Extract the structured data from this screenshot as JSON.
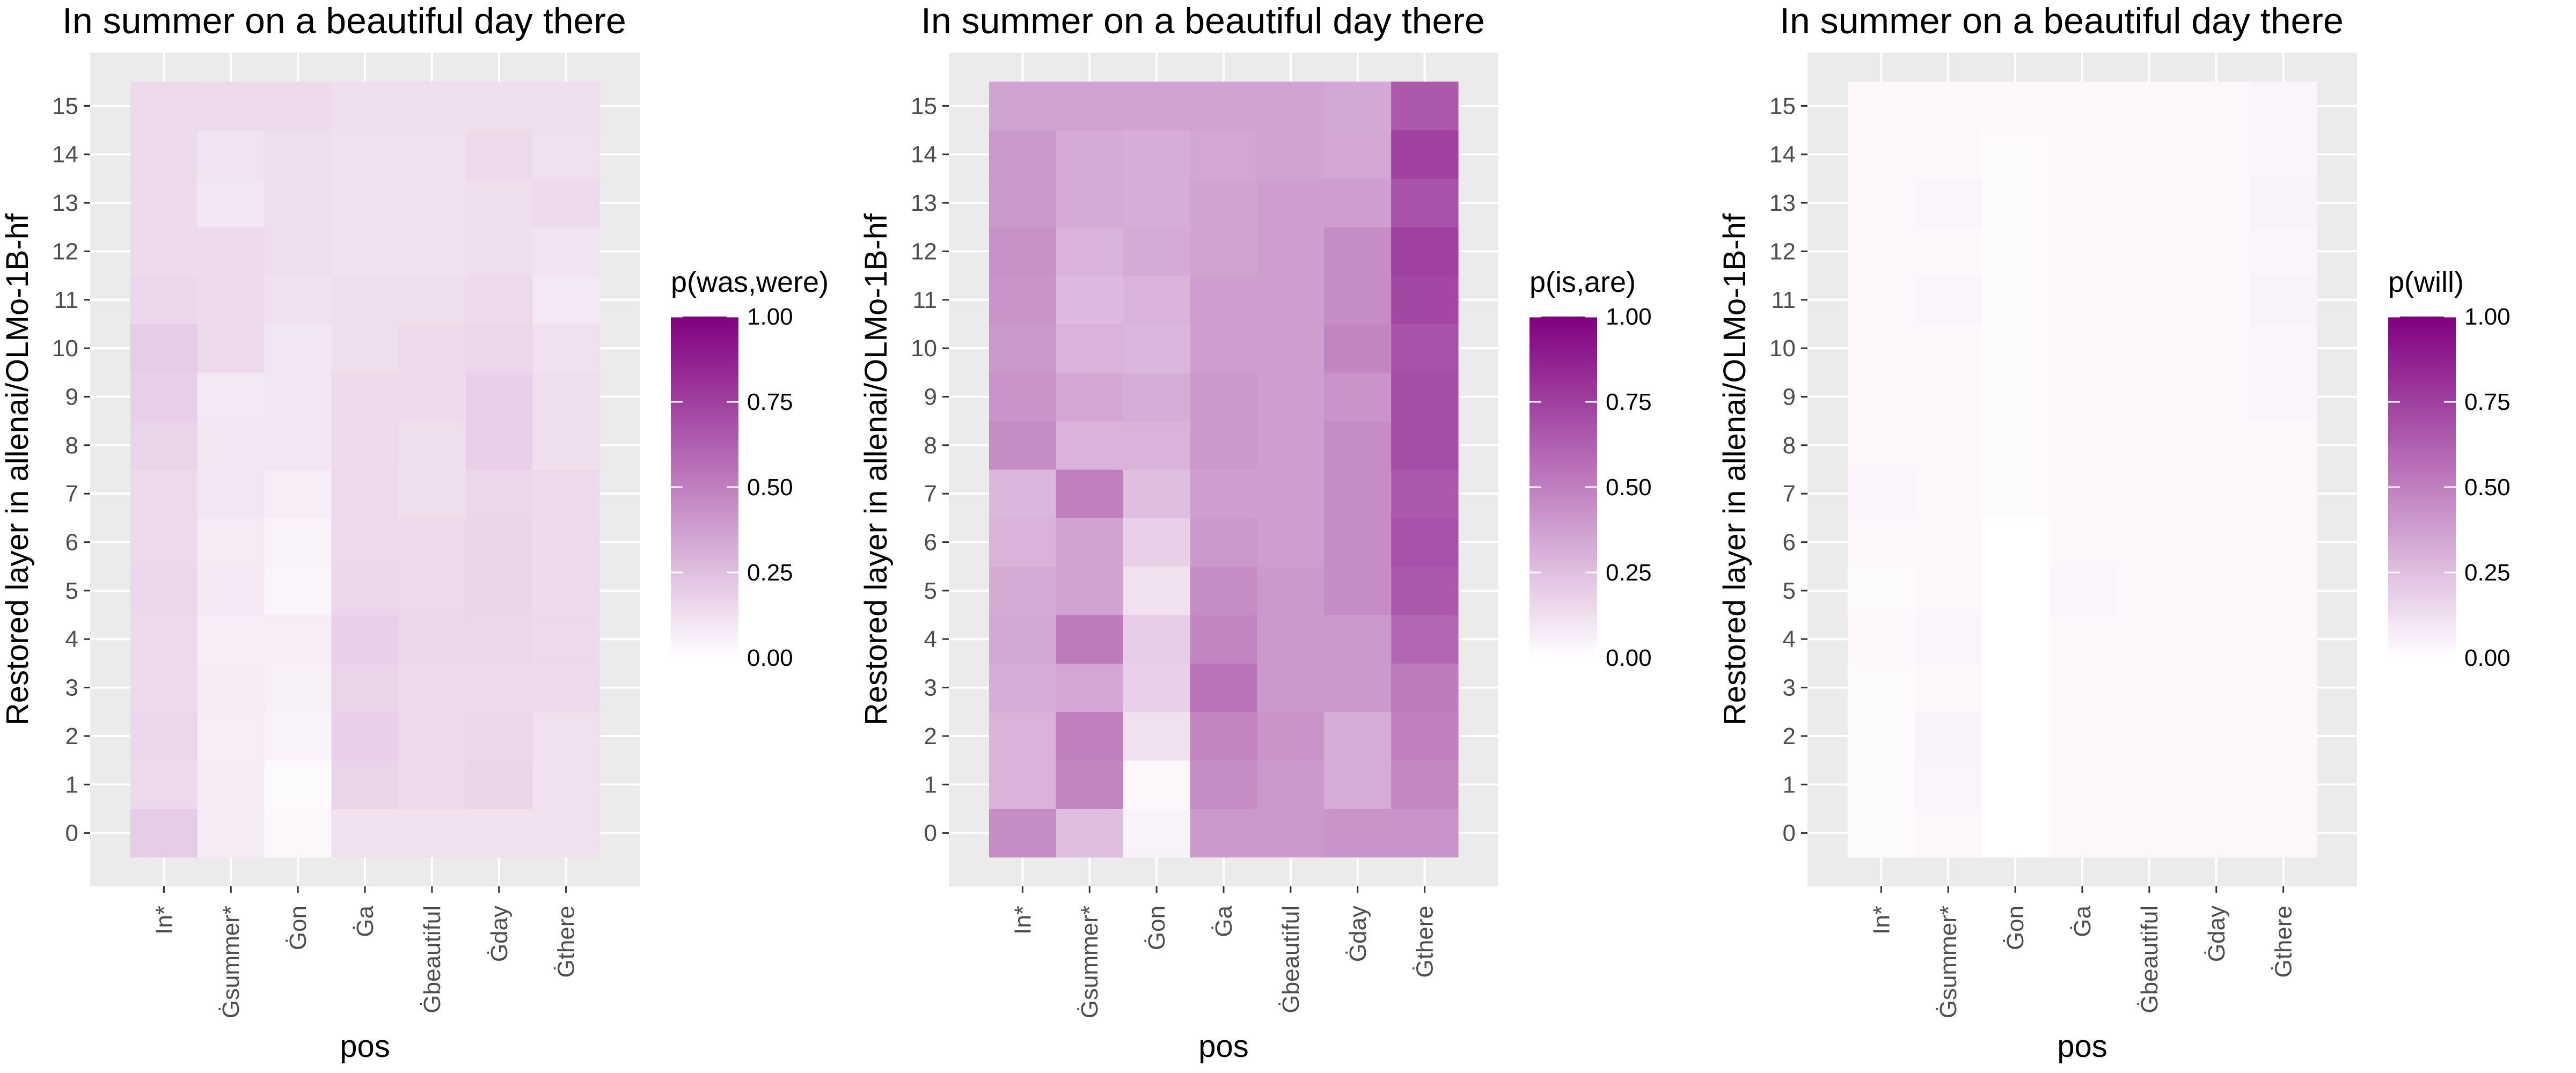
{
  "chart_data": [
    {
      "type": "heatmap",
      "title": "In summer on a beautiful day there",
      "xlabel": "pos",
      "ylabel": "Restored layer in allenai/OLMo-1B-hf",
      "x_categories": [
        "In*",
        "Ġsummer*",
        "Ġon",
        "Ġa",
        "Ġbeautiful",
        "Ġday",
        "Ġthere"
      ],
      "y_categories": [
        "0",
        "1",
        "2",
        "3",
        "4",
        "5",
        "6",
        "7",
        "8",
        "9",
        "10",
        "11",
        "12",
        "13",
        "14",
        "15"
      ],
      "legend_title": "p(was,were)",
      "legend_ticks": [
        "1.00",
        "0.75",
        "0.50",
        "0.25",
        "0.00"
      ],
      "legend_tick_values": [
        1.0,
        0.75,
        0.5,
        0.25,
        0.0
      ],
      "value_range": [
        0,
        1
      ],
      "color_low": "#ffffff",
      "color_high": "#800080",
      "background": "#ebebeb",
      "grid_color": "#ffffff",
      "values": [
        [
          0.2,
          0.08,
          0.03,
          0.12,
          0.12,
          0.12,
          0.12
        ],
        [
          0.15,
          0.08,
          0.02,
          0.17,
          0.15,
          0.17,
          0.12
        ],
        [
          0.16,
          0.07,
          0.05,
          0.18,
          0.15,
          0.16,
          0.12
        ],
        [
          0.15,
          0.08,
          0.06,
          0.17,
          0.15,
          0.15,
          0.14
        ],
        [
          0.15,
          0.07,
          0.07,
          0.18,
          0.16,
          0.16,
          0.15
        ],
        [
          0.16,
          0.09,
          0.04,
          0.16,
          0.15,
          0.17,
          0.14
        ],
        [
          0.15,
          0.08,
          0.05,
          0.15,
          0.15,
          0.17,
          0.14
        ],
        [
          0.15,
          0.1,
          0.07,
          0.15,
          0.13,
          0.16,
          0.15
        ],
        [
          0.17,
          0.1,
          0.1,
          0.14,
          0.13,
          0.18,
          0.13
        ],
        [
          0.19,
          0.09,
          0.1,
          0.14,
          0.14,
          0.18,
          0.13
        ],
        [
          0.2,
          0.15,
          0.1,
          0.13,
          0.14,
          0.16,
          0.12
        ],
        [
          0.16,
          0.14,
          0.12,
          0.13,
          0.13,
          0.15,
          0.09
        ],
        [
          0.14,
          0.14,
          0.13,
          0.12,
          0.12,
          0.13,
          0.11
        ],
        [
          0.14,
          0.1,
          0.13,
          0.12,
          0.12,
          0.13,
          0.14
        ],
        [
          0.15,
          0.11,
          0.13,
          0.12,
          0.12,
          0.14,
          0.12
        ],
        [
          0.15,
          0.14,
          0.14,
          0.13,
          0.13,
          0.13,
          0.13
        ]
      ]
    },
    {
      "type": "heatmap",
      "title": "In summer on a beautiful day there",
      "xlabel": "pos",
      "ylabel": "Restored layer in allenai/OLMo-1B-hf",
      "x_categories": [
        "In*",
        "Ġsummer*",
        "Ġon",
        "Ġa",
        "Ġbeautiful",
        "Ġday",
        "Ġthere"
      ],
      "y_categories": [
        "0",
        "1",
        "2",
        "3",
        "4",
        "5",
        "6",
        "7",
        "8",
        "9",
        "10",
        "11",
        "12",
        "13",
        "14",
        "15"
      ],
      "legend_title": "p(is,are)",
      "legend_ticks": [
        "1.00",
        "0.75",
        "0.50",
        "0.25",
        "0.00"
      ],
      "legend_tick_values": [
        1.0,
        0.75,
        0.5,
        0.25,
        0.0
      ],
      "value_range": [
        0,
        1
      ],
      "color_low": "#ffffff",
      "color_high": "#800080",
      "background": "#ebebeb",
      "grid_color": "#ffffff",
      "values": [
        [
          0.45,
          0.25,
          0.05,
          0.4,
          0.4,
          0.42,
          0.42
        ],
        [
          0.3,
          0.48,
          0.03,
          0.45,
          0.4,
          0.32,
          0.47
        ],
        [
          0.3,
          0.5,
          0.12,
          0.48,
          0.42,
          0.32,
          0.5
        ],
        [
          0.32,
          0.35,
          0.18,
          0.55,
          0.4,
          0.4,
          0.52
        ],
        [
          0.34,
          0.52,
          0.2,
          0.48,
          0.4,
          0.4,
          0.6
        ],
        [
          0.33,
          0.36,
          0.12,
          0.45,
          0.4,
          0.45,
          0.65
        ],
        [
          0.3,
          0.36,
          0.18,
          0.4,
          0.38,
          0.45,
          0.68
        ],
        [
          0.28,
          0.5,
          0.25,
          0.38,
          0.38,
          0.45,
          0.65
        ],
        [
          0.45,
          0.3,
          0.3,
          0.4,
          0.38,
          0.45,
          0.7
        ],
        [
          0.42,
          0.35,
          0.32,
          0.4,
          0.38,
          0.42,
          0.7
        ],
        [
          0.4,
          0.3,
          0.28,
          0.38,
          0.38,
          0.48,
          0.68
        ],
        [
          0.42,
          0.27,
          0.3,
          0.38,
          0.38,
          0.45,
          0.72
        ],
        [
          0.43,
          0.3,
          0.33,
          0.36,
          0.38,
          0.45,
          0.75
        ],
        [
          0.4,
          0.33,
          0.32,
          0.36,
          0.38,
          0.38,
          0.68
        ],
        [
          0.4,
          0.33,
          0.32,
          0.35,
          0.36,
          0.35,
          0.75
        ],
        [
          0.36,
          0.36,
          0.36,
          0.36,
          0.36,
          0.34,
          0.65
        ]
      ]
    },
    {
      "type": "heatmap",
      "title": "In summer on a beautiful day there",
      "xlabel": "pos",
      "ylabel": "Restored layer in allenai/OLMo-1B-hf",
      "x_categories": [
        "In*",
        "Ġsummer*",
        "Ġon",
        "Ġa",
        "Ġbeautiful",
        "Ġday",
        "Ġthere"
      ],
      "y_categories": [
        "0",
        "1",
        "2",
        "3",
        "4",
        "5",
        "6",
        "7",
        "8",
        "9",
        "10",
        "11",
        "12",
        "13",
        "14",
        "15"
      ],
      "legend_title": "p(will)",
      "legend_ticks": [
        "1.00",
        "0.75",
        "0.50",
        "0.25",
        "0.00"
      ],
      "legend_tick_values": [
        1.0,
        0.75,
        0.5,
        0.25,
        0.0
      ],
      "value_range": [
        0,
        1
      ],
      "color_low": "#ffffff",
      "color_high": "#800080",
      "background": "#ebebeb",
      "grid_color": "#ffffff",
      "values": [
        [
          0.02,
          0.03,
          0.0,
          0.03,
          0.03,
          0.03,
          0.03
        ],
        [
          0.02,
          0.04,
          0.0,
          0.03,
          0.03,
          0.03,
          0.03
        ],
        [
          0.02,
          0.05,
          0.0,
          0.03,
          0.03,
          0.03,
          0.03
        ],
        [
          0.02,
          0.03,
          0.0,
          0.03,
          0.03,
          0.03,
          0.03
        ],
        [
          0.03,
          0.04,
          0.0,
          0.03,
          0.03,
          0.03,
          0.03
        ],
        [
          0.02,
          0.03,
          0.0,
          0.04,
          0.03,
          0.03,
          0.03
        ],
        [
          0.03,
          0.03,
          0.0,
          0.03,
          0.03,
          0.03,
          0.03
        ],
        [
          0.04,
          0.03,
          0.02,
          0.03,
          0.03,
          0.03,
          0.03
        ],
        [
          0.03,
          0.03,
          0.02,
          0.03,
          0.03,
          0.03,
          0.03
        ],
        [
          0.03,
          0.03,
          0.02,
          0.03,
          0.03,
          0.03,
          0.04
        ],
        [
          0.03,
          0.03,
          0.02,
          0.03,
          0.03,
          0.03,
          0.04
        ],
        [
          0.03,
          0.04,
          0.02,
          0.03,
          0.03,
          0.03,
          0.05
        ],
        [
          0.03,
          0.03,
          0.02,
          0.03,
          0.03,
          0.03,
          0.04
        ],
        [
          0.03,
          0.04,
          0.02,
          0.03,
          0.03,
          0.03,
          0.05
        ],
        [
          0.03,
          0.03,
          0.02,
          0.03,
          0.03,
          0.03,
          0.04
        ],
        [
          0.03,
          0.03,
          0.03,
          0.03,
          0.03,
          0.03,
          0.04
        ]
      ]
    }
  ]
}
